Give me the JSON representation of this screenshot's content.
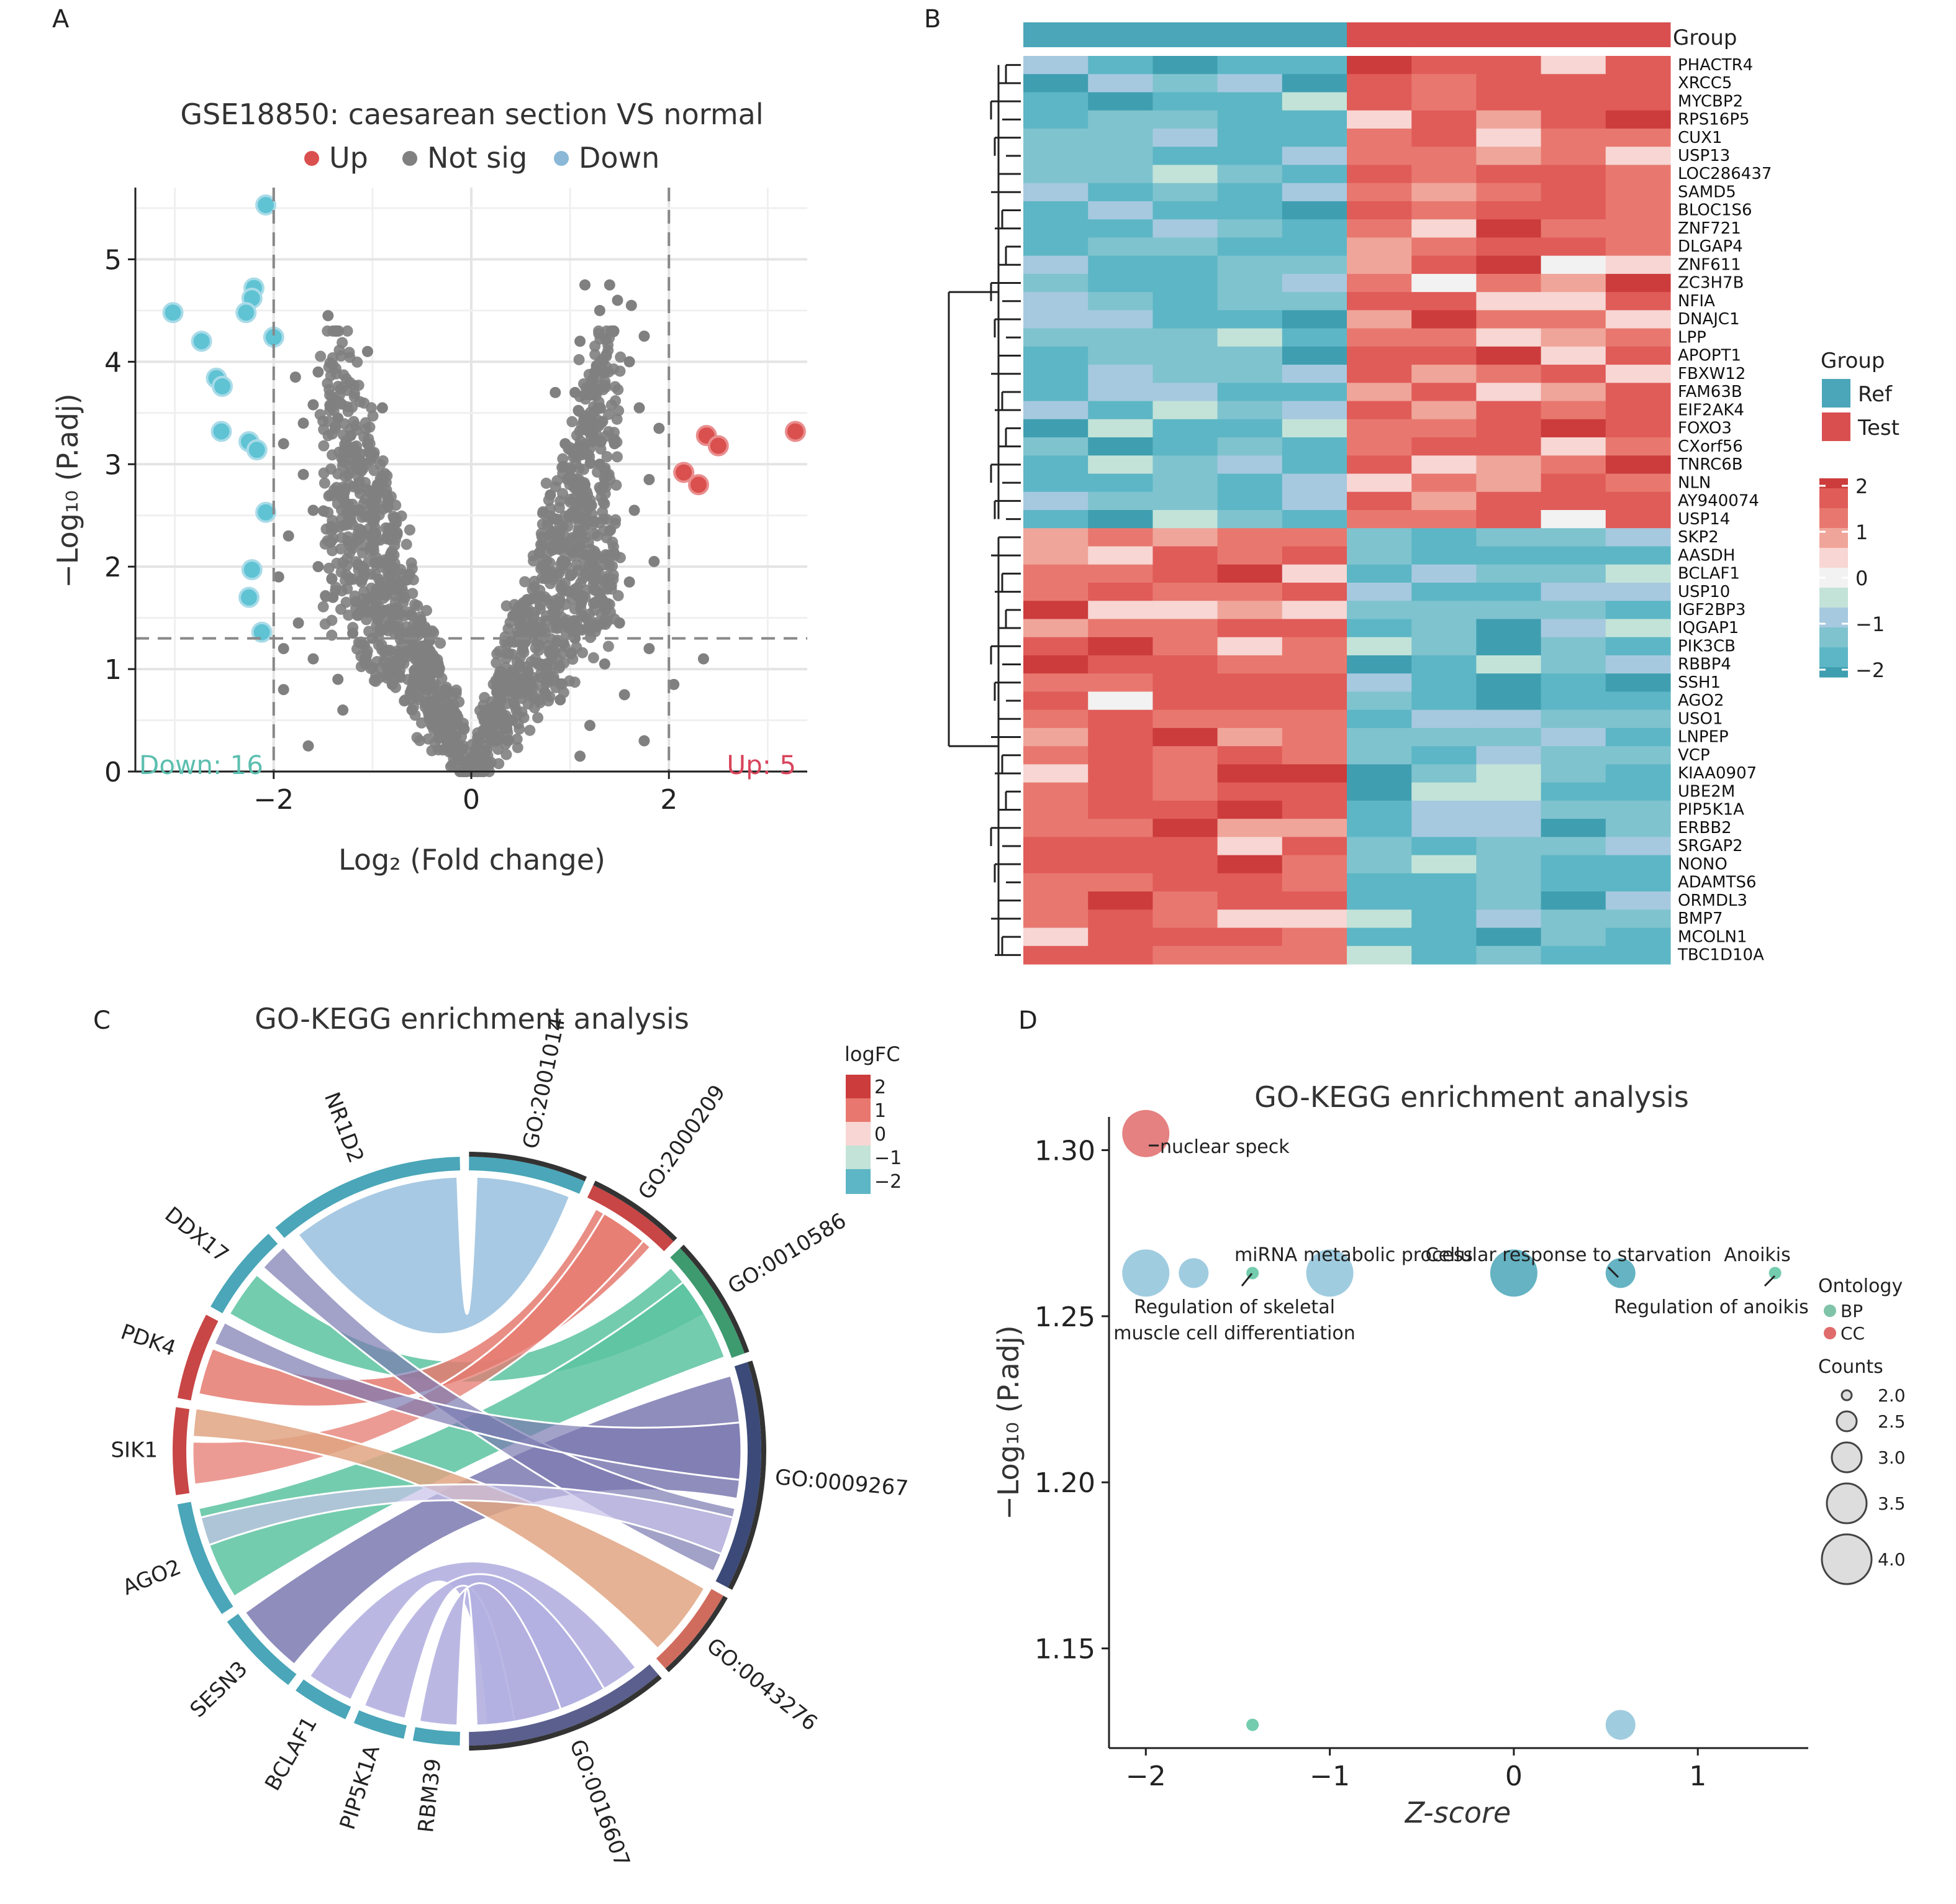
{
  "panels": {
    "A": {
      "letter": "A"
    },
    "B": {
      "letter": "B"
    },
    "C": {
      "letter": "C"
    },
    "D": {
      "letter": "D"
    }
  },
  "colors": {
    "up": "#d9504f",
    "down": "#6dbfd0",
    "notsig": "#808080",
    "ref": "#4aa6b8",
    "test": "#d94f4f",
    "bp": "#7fc3a8",
    "cc": "#e06b6b"
  },
  "chart_data": [
    {
      "id": "A",
      "type": "scatter",
      "title": "GSE18850: caesarean section VS normal",
      "xlabel": "Log₂ (Fold change)",
      "ylabel": "−Log₁₀ (P.adj)",
      "xlim": [
        -3.4,
        3.4
      ],
      "ylim": [
        0,
        5.7
      ],
      "xticks": [
        -2,
        0,
        2
      ],
      "yticks": [
        0,
        1,
        2,
        3,
        4,
        5
      ],
      "xtick_labels": [
        "−2",
        "0",
        "2"
      ],
      "ytick_labels": [
        "0",
        "1",
        "2",
        "3",
        "4",
        "5"
      ],
      "thresholds": {
        "x": [
          -2,
          2
        ],
        "y": 1.3
      },
      "legend": [
        {
          "label": "Up",
          "color": "#d9504f"
        },
        {
          "label": "Not sig",
          "color": "#808080"
        },
        {
          "label": "Down",
          "color": "#8ab8d6"
        }
      ],
      "annotations": {
        "down": "Down: 16",
        "up": "Up: 5"
      },
      "up_points": [
        [
          3.28,
          3.32
        ],
        [
          2.38,
          3.28
        ],
        [
          2.5,
          3.18
        ],
        [
          2.15,
          2.92
        ],
        [
          2.3,
          2.8
        ]
      ],
      "down_points": [
        [
          -2.08,
          5.53
        ],
        [
          -3.02,
          4.48
        ],
        [
          -2.73,
          4.2
        ],
        [
          -2.2,
          4.72
        ],
        [
          -2.22,
          4.62
        ],
        [
          -2.28,
          4.48
        ],
        [
          -2.0,
          4.24
        ],
        [
          -2.58,
          3.84
        ],
        [
          -2.52,
          3.76
        ],
        [
          -2.53,
          3.32
        ],
        [
          -2.25,
          3.22
        ],
        [
          -2.17,
          3.14
        ],
        [
          -2.08,
          2.53
        ],
        [
          -2.22,
          1.97
        ],
        [
          -2.25,
          1.7
        ],
        [
          -2.12,
          1.36
        ]
      ],
      "notsig_points": [
        [
          -1.45,
          4.45
        ],
        [
          -1.05,
          4.1
        ],
        [
          -1.78,
          3.85
        ],
        [
          -1.6,
          3.58
        ],
        [
          -1.9,
          3.2
        ],
        [
          -1.35,
          3.45
        ],
        [
          -1.22,
          3.28
        ],
        [
          -1.15,
          2.95
        ],
        [
          -0.95,
          2.8
        ],
        [
          -1.7,
          2.9
        ],
        [
          -1.6,
          2.55
        ],
        [
          -1.85,
          2.3
        ],
        [
          -1.25,
          2.25
        ],
        [
          -1.55,
          2.0
        ],
        [
          -1.95,
          1.9
        ],
        [
          -0.85,
          2.3
        ],
        [
          -1.1,
          2.0
        ],
        [
          -1.4,
          1.7
        ],
        [
          -1.75,
          1.45
        ],
        [
          -1.9,
          1.2
        ],
        [
          -1.6,
          1.1
        ],
        [
          -1.2,
          1.35
        ],
        [
          -0.75,
          1.6
        ],
        [
          -1.0,
          1.3
        ],
        [
          -1.35,
          0.9
        ],
        [
          -1.9,
          0.8
        ],
        [
          -0.55,
          1.1
        ],
        [
          -0.8,
          0.85
        ],
        [
          -0.6,
          0.6
        ],
        [
          -0.4,
          0.45
        ],
        [
          -0.25,
          0.3
        ],
        [
          -0.15,
          0.15
        ],
        [
          -0.05,
          0.05
        ],
        [
          -1.65,
          0.25
        ],
        [
          -1.3,
          0.6
        ],
        [
          -1.7,
          3.4
        ],
        [
          -1.55,
          3.9
        ],
        [
          -0.9,
          3.55
        ],
        [
          -1.05,
          3.2
        ],
        [
          1.15,
          4.75
        ],
        [
          1.4,
          4.75
        ],
        [
          1.48,
          4.6
        ],
        [
          1.62,
          4.55
        ],
        [
          1.3,
          4.5
        ],
        [
          1.75,
          4.25
        ],
        [
          1.1,
          4.2
        ],
        [
          1.6,
          4.0
        ],
        [
          1.25,
          3.9
        ],
        [
          1.05,
          3.7
        ],
        [
          1.7,
          3.55
        ],
        [
          1.9,
          3.35
        ],
        [
          1.45,
          3.2
        ],
        [
          1.3,
          3.0
        ],
        [
          1.15,
          2.8
        ],
        [
          1.8,
          2.85
        ],
        [
          1.65,
          2.55
        ],
        [
          1.4,
          2.35
        ],
        [
          1.1,
          2.2
        ],
        [
          0.95,
          2.05
        ],
        [
          1.85,
          2.05
        ],
        [
          1.6,
          1.85
        ],
        [
          1.25,
          1.65
        ],
        [
          1.5,
          1.45
        ],
        [
          0.85,
          1.6
        ],
        [
          1.05,
          1.3
        ],
        [
          1.8,
          1.2
        ],
        [
          1.35,
          1.05
        ],
        [
          0.7,
          1.05
        ],
        [
          0.55,
          0.8
        ],
        [
          0.9,
          0.7
        ],
        [
          1.55,
          0.75
        ],
        [
          0.4,
          0.5
        ],
        [
          0.25,
          0.3
        ],
        [
          0.12,
          0.15
        ],
        [
          0.03,
          0.05
        ],
        [
          1.2,
          0.45
        ],
        [
          2.35,
          1.1
        ],
        [
          2.05,
          0.85
        ],
        [
          1.75,
          0.3
        ],
        [
          1.1,
          0.15
        ],
        [
          0.8,
          2.7
        ],
        [
          0.95,
          3.2
        ],
        [
          0.85,
          3.7
        ]
      ]
    },
    {
      "id": "B",
      "type": "heatmap",
      "columns": 10,
      "col_groups": [
        "Ref",
        "Ref",
        "Ref",
        "Ref",
        "Ref",
        "Test",
        "Test",
        "Test",
        "Test",
        "Test"
      ],
      "top_label": "Group",
      "genes": [
        "PHACTR4",
        "XRCC5",
        "MYCBP2",
        "RPS16P5",
        "CUX1",
        "USP13",
        "LOC286437",
        "SAMD5",
        "BLOC1S6",
        "ZNF721",
        "DLGAP4",
        "ZNF611",
        "ZC3H7B",
        "NFIA",
        "DNAJC1",
        "LPP",
        "APOPT1",
        "FBXW12",
        "FAM63B",
        "EIF2AK4",
        "FOXO3",
        "CXorf56",
        "TNRC6B",
        "NLN",
        "AY940074",
        "USP14",
        "SKP2",
        "AASDH",
        "BCLAF1",
        "USP10",
        "IGF2BP3",
        "IQGAP1",
        "PIK3CB",
        "RBBP4",
        "SSH1",
        "AGO2",
        "USO1",
        "LNPEP",
        "VCP",
        "KIAA0907",
        "UBE2M",
        "PIP5K1A",
        "ERBB2",
        "SRGAP2",
        "NONO",
        "ADAMTS6",
        "ORMDL3",
        "BMP7",
        "MCOLN1",
        "TBC1D10A"
      ],
      "gene_direction": "first 26 genes: Ref low / Test high; last 24 genes: Ref high / Test low",
      "legend_group": {
        "title": "Group",
        "items": [
          "Ref",
          "Test"
        ]
      },
      "colorbar": {
        "ticks": [
          "2",
          "1",
          "0",
          "−1",
          "−2"
        ]
      }
    },
    {
      "id": "C",
      "type": "chord",
      "title": "GO-KEGG enrichment analysis",
      "legend_title": "logFC",
      "legend_ticks": [
        "2",
        "1",
        "0",
        "−1",
        "−2"
      ],
      "genes": [
        "NR1D2",
        "DDX17",
        "PDK4",
        "SIK1",
        "AGO2",
        "SESN3",
        "BCLAF1",
        "PIP5K1A",
        "RBM39"
      ],
      "terms": [
        "GO:2001014",
        "GO:2000209",
        "GO:0010586",
        "GO:0009267",
        "GO:0043276",
        "GO:0016607"
      ]
    },
    {
      "id": "D",
      "type": "scatter",
      "title": "GO-KEGG enrichment analysis",
      "xlabel": "Z-score",
      "ylabel": "−Log₁₀ (P.adj)",
      "xlim": [
        -2.2,
        1.6
      ],
      "ylim": [
        1.12,
        1.31
      ],
      "xticks": [
        -2,
        -1,
        0,
        1
      ],
      "yticks": [
        1.15,
        1.2,
        1.25,
        1.3
      ],
      "xtick_labels": [
        "−2",
        "−1",
        "0",
        "1"
      ],
      "ytick_labels": [
        "1.15",
        "1.20",
        "1.25",
        "1.30"
      ],
      "points": [
        {
          "x": -2.0,
          "y": 1.305,
          "count": 4,
          "ontology": "CC"
        },
        {
          "x": -2.0,
          "y": 1.263,
          "count": 4,
          "ontology": "BP"
        },
        {
          "x": -1.74,
          "y": 1.263,
          "count": 3,
          "ontology": "BP"
        },
        {
          "x": -1.42,
          "y": 1.263,
          "count": 2,
          "ontology": "BP"
        },
        {
          "x": -1.0,
          "y": 1.263,
          "count": 4,
          "ontology": "BP"
        },
        {
          "x": 0.0,
          "y": 1.263,
          "count": 4,
          "ontology": "BP"
        },
        {
          "x": 0.58,
          "y": 1.263,
          "count": 3,
          "ontology": "BP"
        },
        {
          "x": 1.42,
          "y": 1.263,
          "count": 2,
          "ontology": "BP"
        },
        {
          "x": -1.42,
          "y": 1.127,
          "count": 2,
          "ontology": "BP"
        },
        {
          "x": 0.58,
          "y": 1.127,
          "count": 3,
          "ontology": "BP"
        }
      ],
      "labels": {
        "nuclear_speck": "nuclear speck",
        "mirna": "miRNA metabolic process",
        "skeletal_1": "Regulation of skeletal",
        "skeletal_2": "muscle cell differentiation",
        "starvation": "Cellular response to starvation",
        "anoikis": "Anoikis",
        "reg_anoikis": "Regulation of anoikis"
      },
      "legend_ontology": {
        "title": "Ontology",
        "items": [
          "BP",
          "CC"
        ]
      },
      "legend_counts": {
        "title": "Counts",
        "items": [
          "2.0",
          "2.5",
          "3.0",
          "3.5",
          "4.0"
        ]
      }
    }
  ]
}
